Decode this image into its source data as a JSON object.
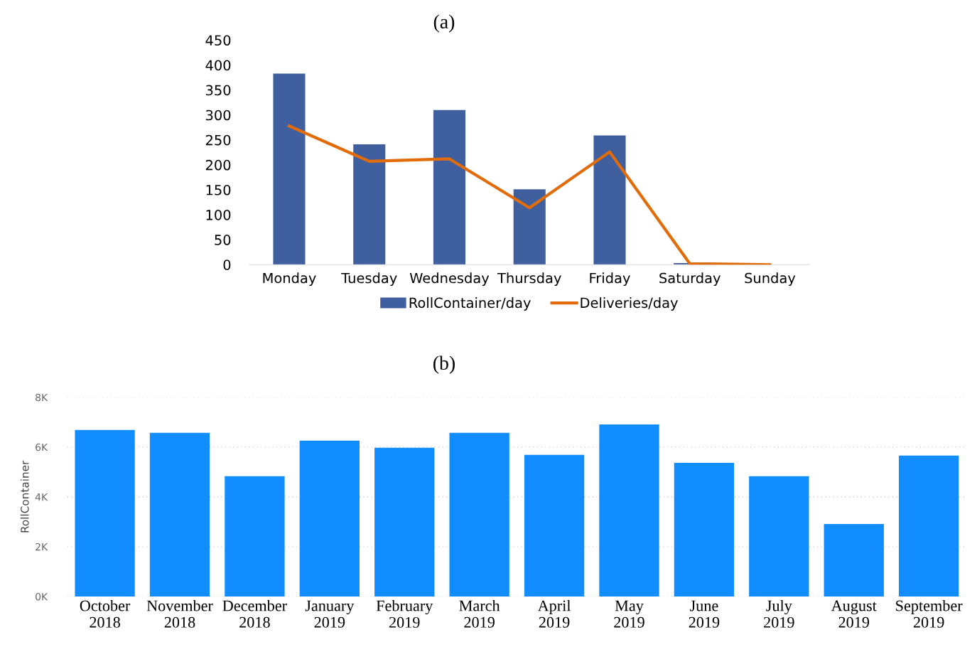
{
  "chart_data": [
    {
      "type": "bar",
      "title": "(a)",
      "categories": [
        "Monday",
        "Tuesday",
        "Wednesday",
        "Thursday",
        "Friday",
        "Saturday",
        "Sunday"
      ],
      "ylim": [
        0,
        450
      ],
      "yticks": [
        0,
        50,
        100,
        150,
        200,
        250,
        300,
        350,
        400,
        450
      ],
      "grid": false,
      "legend": "bottom",
      "series": [
        {
          "name": "RollContainer/day",
          "color": "#3f5f9f",
          "values": [
            383,
            241,
            310,
            151,
            259,
            3,
            0
          ]
        },
        {
          "name": "Deliveries/day",
          "type": "line",
          "color": "#e36c0a",
          "values": [
            278,
            207,
            212,
            114,
            226,
            2,
            0
          ]
        }
      ]
    },
    {
      "type": "bar",
      "title": "(b)",
      "ylabel": "RollContainer",
      "categories": [
        "October\n2018",
        "November\n2018",
        "December\n2018",
        "January\n2019",
        "February\n2019",
        "March\n2019",
        "April\n2019",
        "May\n2019",
        "June\n2019",
        "July\n2019",
        "August\n2019",
        "September\n2019"
      ],
      "ylim": [
        0,
        8000
      ],
      "yticks": [
        {
          "value": 0,
          "label": "0K"
        },
        {
          "value": 2000,
          "label": "2K"
        },
        {
          "value": 4000,
          "label": "4K"
        },
        {
          "value": 6000,
          "label": "6K"
        },
        {
          "value": 8000,
          "label": "8K"
        }
      ],
      "grid": "y",
      "series": [
        {
          "color": "#118dff",
          "values": [
            6690,
            6570,
            4830,
            6260,
            5970,
            6570,
            5690,
            6910,
            5370,
            4830,
            2910,
            5660
          ]
        }
      ]
    }
  ]
}
